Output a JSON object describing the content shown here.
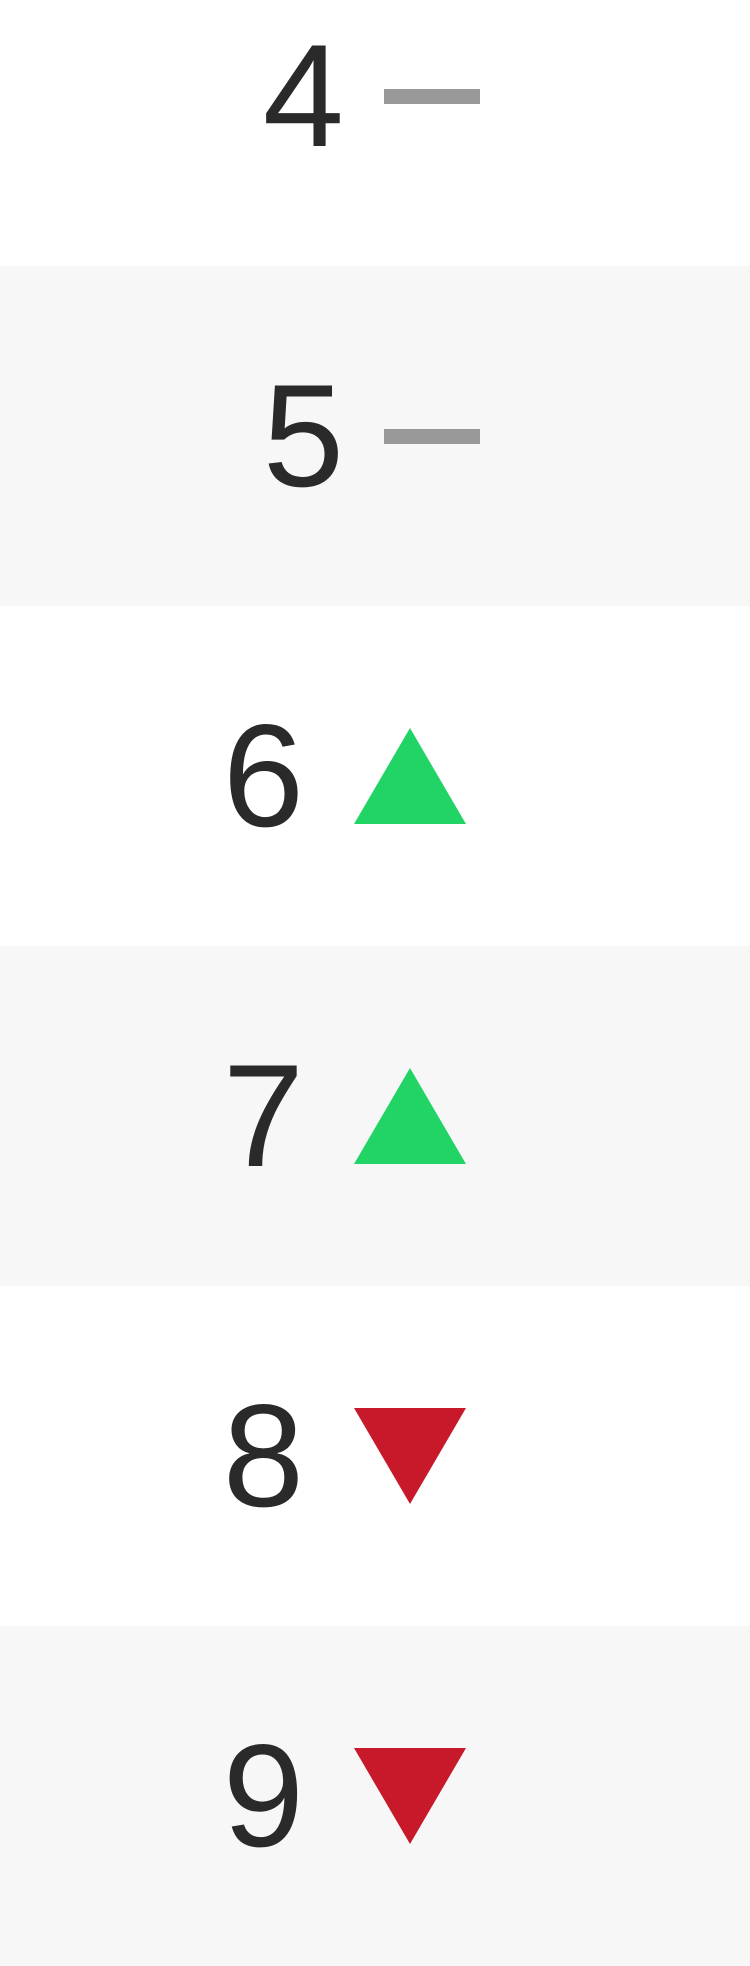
{
  "colors": {
    "up": "#22d466",
    "down": "#c8192b",
    "same": "#999999",
    "row_alt": "#f7f7f7"
  },
  "rows": [
    {
      "rank": "4",
      "trend": "same",
      "icon": "dash-icon"
    },
    {
      "rank": "5",
      "trend": "same",
      "icon": "dash-icon"
    },
    {
      "rank": "6",
      "trend": "up",
      "icon": "triangle-up-icon"
    },
    {
      "rank": "7",
      "trend": "up",
      "icon": "triangle-up-icon"
    },
    {
      "rank": "8",
      "trend": "down",
      "icon": "triangle-down-icon"
    },
    {
      "rank": "9",
      "trend": "down",
      "icon": "triangle-down-icon"
    }
  ]
}
